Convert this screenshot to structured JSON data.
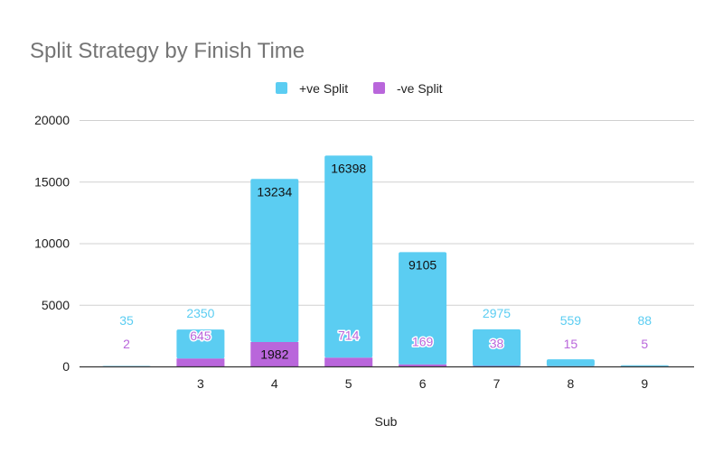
{
  "chart_data": {
    "type": "bar",
    "stacked": true,
    "title": "Split Strategy by Finish Time",
    "xlabel": "Sub",
    "ylabel": "",
    "ylim": [
      0,
      20000
    ],
    "yticks": [
      0,
      5000,
      10000,
      15000,
      20000
    ],
    "grid": true,
    "legend_position": "top",
    "categories": [
      "",
      "3",
      "4",
      "5",
      "6",
      "7",
      "8",
      "9"
    ],
    "series": [
      {
        "name": "+ve Split",
        "color": "#5bcdf2",
        "values": [
          35,
          2350,
          13234,
          16398,
          9105,
          2975,
          559,
          88
        ]
      },
      {
        "name": "-ve Split",
        "color": "#b966db",
        "values": [
          2,
          645,
          1982,
          714,
          169,
          38,
          15,
          5
        ]
      }
    ]
  }
}
